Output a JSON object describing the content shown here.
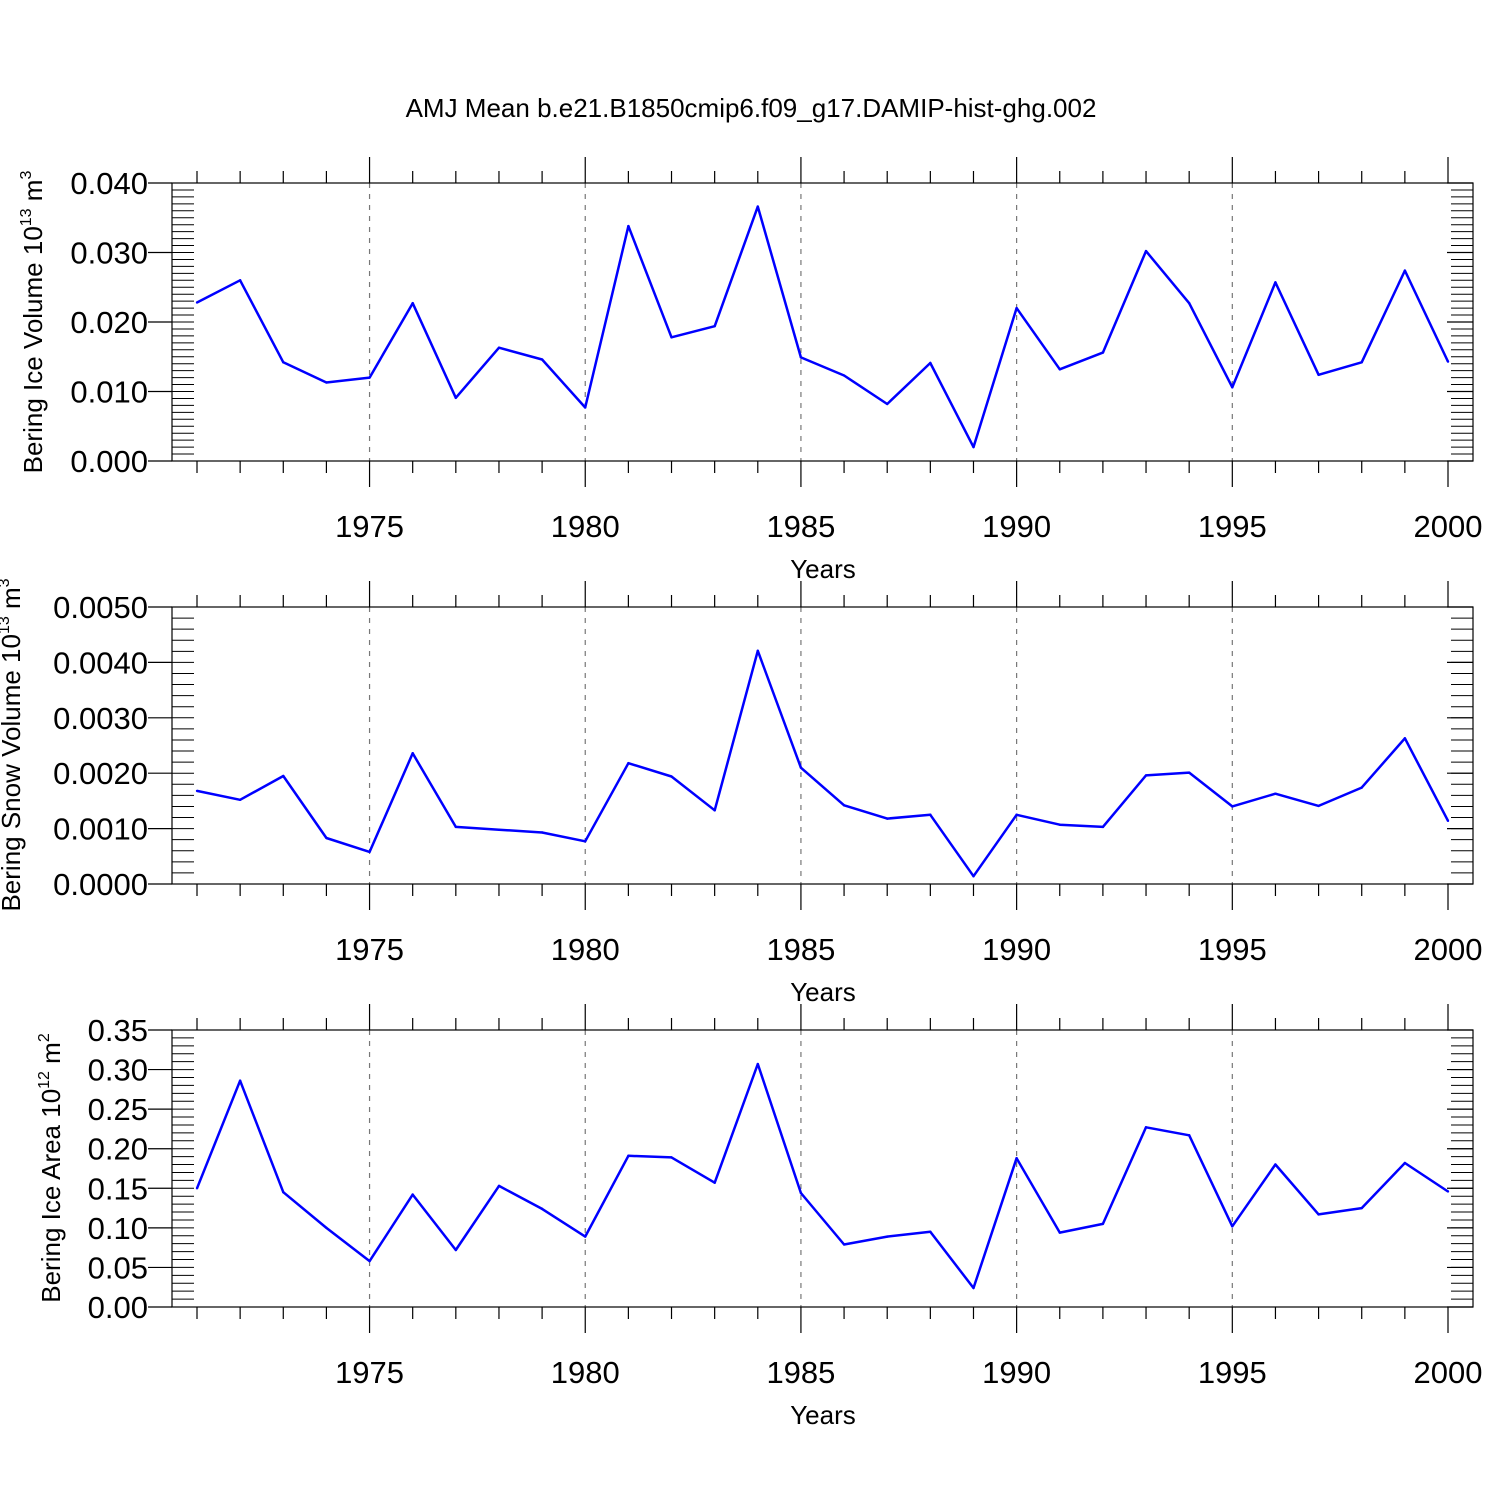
{
  "figure_title": "AMJ Mean b.e21.B1850cmip6.f09_g17.DAMIP-hist-ghg.002",
  "colors": {
    "line": "#0000ff",
    "axis": "#000000",
    "grid": "#777777"
  },
  "chart_data": [
    {
      "type": "line",
      "title": "AMJ Mean b.e21.B1850cmip6.f09_g17.DAMIP-hist-ghg.002",
      "xlabel": "Years",
      "ylabel": "Bering Ice Volume 10",
      "ylabel_exponent": "13",
      "ylabel_unit": " m",
      "ylabel_unit_exponent": "3",
      "xlim": [
        1971,
        2000
      ],
      "ylim": [
        0,
        0.04
      ],
      "xticks": [
        1975,
        1980,
        1985,
        1990,
        1995,
        2000
      ],
      "xtick_labels": [
        "1975",
        "1980",
        "1985",
        "1990",
        "1995",
        "2000"
      ],
      "yticks": [
        0,
        0.01,
        0.02,
        0.03,
        0.04
      ],
      "ytick_labels": [
        "0.000",
        "0.010",
        "0.020",
        "0.030",
        "0.040"
      ],
      "grid": "vertical dashed at major x ticks",
      "x": [
        1971,
        1972,
        1973,
        1974,
        1975,
        1976,
        1977,
        1978,
        1979,
        1980,
        1981,
        1982,
        1983,
        1984,
        1985,
        1986,
        1987,
        1988,
        1989,
        1990,
        1991,
        1992,
        1993,
        1994,
        1995,
        1996,
        1997,
        1998,
        1999,
        2000
      ],
      "values": [
        0.0228,
        0.026,
        0.0142,
        0.0113,
        0.012,
        0.0227,
        0.0091,
        0.0163,
        0.0146,
        0.0077,
        0.0338,
        0.0178,
        0.0194,
        0.0366,
        0.0149,
        0.0123,
        0.0082,
        0.0141,
        0.002,
        0.022,
        0.0132,
        0.0156,
        0.0302,
        0.0227,
        0.0106,
        0.0257,
        0.0124,
        0.0142,
        0.0274,
        0.0143
      ]
    },
    {
      "type": "line",
      "xlabel": "Years",
      "ylabel": "Bering Snow Volume 10",
      "ylabel_exponent": "13",
      "ylabel_unit": " m",
      "ylabel_unit_exponent": "3",
      "xlim": [
        1971,
        2000
      ],
      "ylim": [
        0,
        0.005
      ],
      "xticks": [
        1975,
        1980,
        1985,
        1990,
        1995,
        2000
      ],
      "xtick_labels": [
        "1975",
        "1980",
        "1985",
        "1990",
        "1995",
        "2000"
      ],
      "yticks": [
        0,
        0.001,
        0.002,
        0.003,
        0.004,
        0.005
      ],
      "ytick_labels": [
        "0.0000",
        "0.0010",
        "0.0020",
        "0.0030",
        "0.0040",
        "0.0050"
      ],
      "grid": "vertical dashed at major x ticks",
      "x": [
        1971,
        1972,
        1973,
        1974,
        1975,
        1976,
        1977,
        1978,
        1979,
        1980,
        1981,
        1982,
        1983,
        1984,
        1985,
        1986,
        1987,
        1988,
        1989,
        1990,
        1991,
        1992,
        1993,
        1994,
        1995,
        1996,
        1997,
        1998,
        1999,
        2000
      ],
      "values": [
        0.00168,
        0.00152,
        0.00195,
        0.00083,
        0.00058,
        0.00236,
        0.00103,
        0.00098,
        0.00093,
        0.00077,
        0.00218,
        0.00194,
        0.00133,
        0.00421,
        0.0021,
        0.00142,
        0.00118,
        0.00125,
        0.00014,
        0.00125,
        0.00107,
        0.00103,
        0.00196,
        0.00201,
        0.0014,
        0.00163,
        0.00141,
        0.00174,
        0.00263,
        0.00114
      ]
    },
    {
      "type": "line",
      "xlabel": "Years",
      "ylabel": "Bering Ice Area 10",
      "ylabel_exponent": "12",
      "ylabel_unit": " m",
      "ylabel_unit_exponent": "2",
      "xlim": [
        1971,
        2000
      ],
      "ylim": [
        0,
        0.35
      ],
      "xticks": [
        1975,
        1980,
        1985,
        1990,
        1995,
        2000
      ],
      "xtick_labels": [
        "1975",
        "1980",
        "1985",
        "1990",
        "1995",
        "2000"
      ],
      "yticks": [
        0,
        0.05,
        0.1,
        0.15,
        0.2,
        0.25,
        0.3,
        0.35
      ],
      "ytick_labels": [
        "0.00",
        "0.05",
        "0.10",
        "0.15",
        "0.20",
        "0.25",
        "0.30",
        "0.35"
      ],
      "grid": "vertical dashed at major x ticks",
      "x": [
        1971,
        1972,
        1973,
        1974,
        1975,
        1976,
        1977,
        1978,
        1979,
        1980,
        1981,
        1982,
        1983,
        1984,
        1985,
        1986,
        1987,
        1988,
        1989,
        1990,
        1991,
        1992,
        1993,
        1994,
        1995,
        1996,
        1997,
        1998,
        1999,
        2000
      ],
      "values": [
        0.15,
        0.286,
        0.145,
        0.1,
        0.058,
        0.142,
        0.072,
        0.153,
        0.124,
        0.089,
        0.191,
        0.189,
        0.157,
        0.307,
        0.144,
        0.079,
        0.089,
        0.095,
        0.024,
        0.188,
        0.094,
        0.105,
        0.227,
        0.217,
        0.102,
        0.18,
        0.117,
        0.125,
        0.182,
        0.146
      ]
    }
  ]
}
